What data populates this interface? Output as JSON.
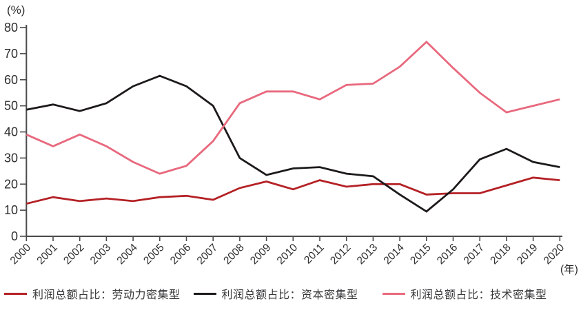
{
  "chart": {
    "y_axis_unit_label": "(%)",
    "x_axis_unit_label": "(年)",
    "y_ticks": [
      0,
      10,
      20,
      30,
      40,
      50,
      60,
      70,
      80
    ],
    "axis_color": "#4a4a4c",
    "text_color": "#2e2c2d"
  },
  "chart_data": {
    "type": "line",
    "x": [
      "2000",
      "2001",
      "2002",
      "2003",
      "2004",
      "2005",
      "2006",
      "2007",
      "2008",
      "2009",
      "2010",
      "2011",
      "2012",
      "2013",
      "2014",
      "2015",
      "2016",
      "2017",
      "2018",
      "2019",
      "2020"
    ],
    "xlabel": "(年)",
    "ylabel": "(%)",
    "ylim": [
      0,
      80
    ],
    "grid": false,
    "legend_position": "bottom",
    "series": [
      {
        "name": "利润总额占比：劳动力密集型",
        "color": "#b42125",
        "values": [
          12.5,
          15,
          13.5,
          14.5,
          13.5,
          15,
          15.5,
          14,
          18.5,
          21,
          18,
          21.5,
          19,
          20,
          20,
          16,
          16.5,
          16.5,
          19.5,
          22.5,
          21.5
        ]
      },
      {
        "name": "利润总额占比：资本密集型",
        "color": "#1d1a1c",
        "values": [
          48.5,
          50.5,
          48,
          51,
          57.5,
          61.5,
          57.5,
          50,
          30,
          23.5,
          26,
          26.5,
          24,
          23,
          16,
          9.5,
          18,
          29.5,
          33.5,
          28.5,
          26.5
        ]
      },
      {
        "name": "利润总额占比：技术密集型",
        "color": "#e8697e",
        "values": [
          39,
          34.5,
          39,
          34.5,
          28.5,
          24,
          27,
          36.5,
          51,
          55.5,
          55.5,
          52.5,
          58,
          58.5,
          65,
          74.5,
          64.5,
          55,
          47.5,
          50,
          52.5
        ]
      }
    ]
  }
}
